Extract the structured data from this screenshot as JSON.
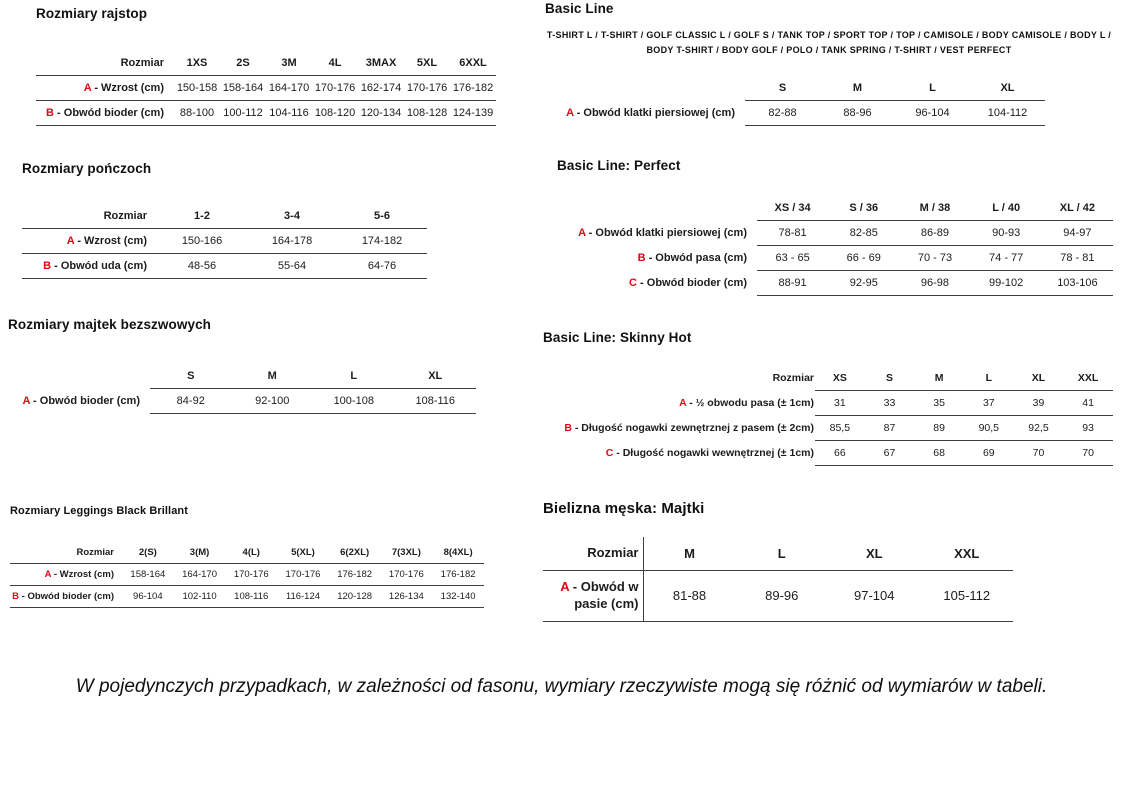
{
  "colors": {
    "accent_red": "#e30613",
    "text": "#1c1c1c",
    "rule_line": "#3f3f3f"
  },
  "page": {
    "footer_note": "W pojedynczych przypadkach, w zależności od fasonu, wymiary rzeczywiste mogą się różnić od wymiarów w tabeli."
  },
  "tables": [
    {
      "title": "Rozmiary rajstop",
      "corner_label": "Rozmiar",
      "columns": [
        "1XS",
        "2S",
        "3M",
        "4L",
        "3MAX",
        "5XL",
        "6XXL"
      ],
      "rows": [
        {
          "letter": "A",
          "label": "- Wzrost (cm)",
          "values": [
            "150-158",
            "158-164",
            "164-170",
            "170-176",
            "162-174",
            "170-176",
            "176-182"
          ]
        },
        {
          "letter": "B",
          "label": "- Obwód bioder (cm)",
          "values": [
            "88-100",
            "100-112",
            "104-116",
            "108-120",
            "120-134",
            "108-128",
            "124-139"
          ]
        }
      ]
    },
    {
      "title": "Rozmiary pończoch",
      "corner_label": "Rozmiar",
      "columns": [
        "1-2",
        "3-4",
        "5-6"
      ],
      "rows": [
        {
          "letter": "A",
          "label": "- Wzrost (cm)",
          "values": [
            "150-166",
            "164-178",
            "174-182"
          ]
        },
        {
          "letter": "B",
          "label": "- Obwód uda (cm)",
          "values": [
            "48-56",
            "55-64",
            "64-76"
          ]
        }
      ]
    },
    {
      "title": "Rozmiary majtek bezszwowych",
      "corner_label": "",
      "columns": [
        "S",
        "M",
        "L",
        "XL"
      ],
      "rows": [
        {
          "letter": "A",
          "label": "- Obwód bioder (cm)",
          "values": [
            "84-92",
            "92-100",
            "100-108",
            "108-116"
          ]
        }
      ]
    },
    {
      "title": "Rozmiary Leggings Black Brillant",
      "corner_label": "Rozmiar",
      "columns": [
        "2(S)",
        "3(M)",
        "4(L)",
        "5(XL)",
        "6(2XL)",
        "7(3XL)",
        "8(4XL)"
      ],
      "rows": [
        {
          "letter": "A",
          "label": "- Wzrost (cm)",
          "values": [
            "158-164",
            "164-170",
            "170-176",
            "170-176",
            "176-182",
            "170-176",
            "176-182"
          ]
        },
        {
          "letter": "B",
          "label": "- Obwód bioder (cm)",
          "values": [
            "96-104",
            "102-110",
            "108-116",
            "116-124",
            "120-128",
            "126-134",
            "132-140"
          ]
        }
      ]
    },
    {
      "title": "Basic Line",
      "subtitle": "T-SHIRT L / T-SHIRT / GOLF CLASSIC L / GOLF S / TANK TOP / SPORT TOP / TOP / CAMISOLE / BODY CAMISOLE / BODY L / BODY T-SHIRT / BODY GOLF / POLO / TANK SPRING / T-SHIRT / VEST PERFECT",
      "corner_label": "",
      "columns": [
        "S",
        "M",
        "L",
        "XL"
      ],
      "rows": [
        {
          "letter": "A",
          "label": "- Obwód klatki piersiowej (cm)",
          "values": [
            "82-88",
            "88-96",
            "96-104",
            "104-112"
          ]
        }
      ]
    },
    {
      "title": "Basic Line: Perfect",
      "corner_label": "",
      "columns": [
        "XS / 34",
        "S / 36",
        "M / 38",
        "L / 40",
        "XL / 42"
      ],
      "rows": [
        {
          "letter": "A",
          "label": "- Obwód klatki piersiowej (cm)",
          "values": [
            "78-81",
            "82-85",
            "86-89",
            "90-93",
            "94-97"
          ]
        },
        {
          "letter": "B",
          "label": "- Obwód pasa (cm)",
          "values": [
            "63 - 65",
            "66 - 69",
            "70 - 73",
            "74 - 77",
            "78 - 81"
          ]
        },
        {
          "letter": "C",
          "label": "- Obwód bioder (cm)",
          "values": [
            "88-91",
            "92-95",
            "96-98",
            "99-102",
            "103-106"
          ]
        }
      ]
    },
    {
      "title": "Basic Line: Skinny Hot",
      "corner_label": "Rozmiar",
      "columns": [
        "XS",
        "S",
        "M",
        "L",
        "XL",
        "XXL"
      ],
      "rows": [
        {
          "letter": "A",
          "label": "- ½ obwodu pasa (± 1cm)",
          "values": [
            "31",
            "33",
            "35",
            "37",
            "39",
            "41"
          ]
        },
        {
          "letter": "B",
          "label": "- Długość nogawki zewnętrznej z pasem (± 2cm)",
          "values": [
            "85,5",
            "87",
            "89",
            "90,5",
            "92,5",
            "93"
          ]
        },
        {
          "letter": "C",
          "label": "- Długość nogawki wewnętrznej (± 1cm)",
          "values": [
            "66",
            "67",
            "68",
            "69",
            "70",
            "70"
          ]
        }
      ]
    },
    {
      "title": "Bielizna męska: Majtki",
      "corner_label": "Rozmiar",
      "columns": [
        "M",
        "L",
        "XL",
        "XXL"
      ],
      "rows": [
        {
          "letter": "A",
          "label": "- Obwód w pasie (cm)",
          "values": [
            "81-88",
            "89-96",
            "97-104",
            "105-112"
          ]
        }
      ]
    }
  ]
}
